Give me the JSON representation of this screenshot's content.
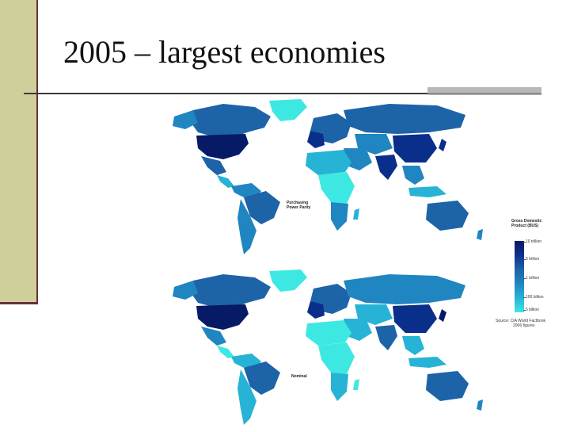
{
  "slide": {
    "title": "2005 – largest economies"
  },
  "maps": [
    {
      "label_line1": "Purchasing",
      "label_line2": "Power Parity"
    },
    {
      "label_line1": "Nominal",
      "label_line2": ""
    }
  ],
  "legend": {
    "title_line1": "Gross Domestic",
    "title_line2": "Product (BUS)",
    "ticks": [
      "10 trillion",
      "5 trillion",
      "1 trillion",
      "100 billion",
      "5 billion"
    ],
    "source_line1": "Source: CIA World Factbook",
    "source_line2": "2006 figures"
  },
  "colors": {
    "darkest": "#071a66",
    "dark": "#0a2f8a",
    "mid": "#1d63a8",
    "light": "#1f86c2",
    "lighter": "#27b3d6",
    "lightest": "#3ee8e2"
  }
}
